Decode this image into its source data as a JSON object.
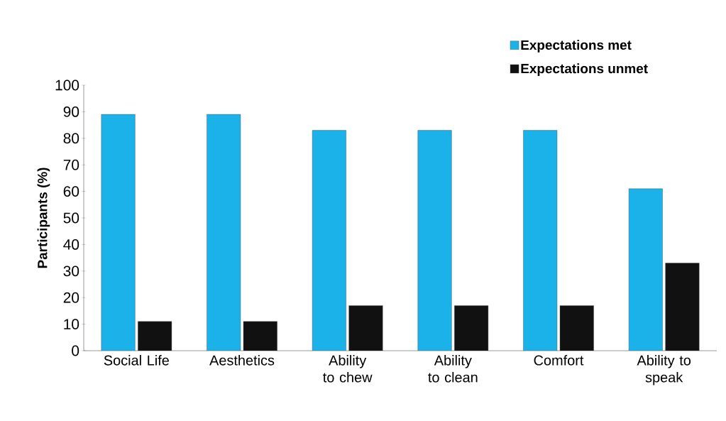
{
  "chart_data": {
    "type": "bar",
    "ylabel": "Participants (%)",
    "categories": [
      "Social Life",
      "Aesthetics",
      "Ability to chew",
      "Ability to clean",
      "Comfort",
      "Ability to speak"
    ],
    "series": [
      {
        "name": "Expectations met",
        "color": "#1ab2e8",
        "values": [
          89,
          89,
          83,
          83,
          83,
          61
        ]
      },
      {
        "name": "Expectations  unmet",
        "color": "#111111",
        "values": [
          11,
          11,
          17,
          17,
          17,
          33
        ]
      }
    ],
    "ylim": [
      0,
      100
    ],
    "yticks": [
      0,
      10,
      20,
      30,
      40,
      50,
      60,
      70,
      80,
      90,
      100
    ],
    "grid": false,
    "legend": "top right"
  }
}
